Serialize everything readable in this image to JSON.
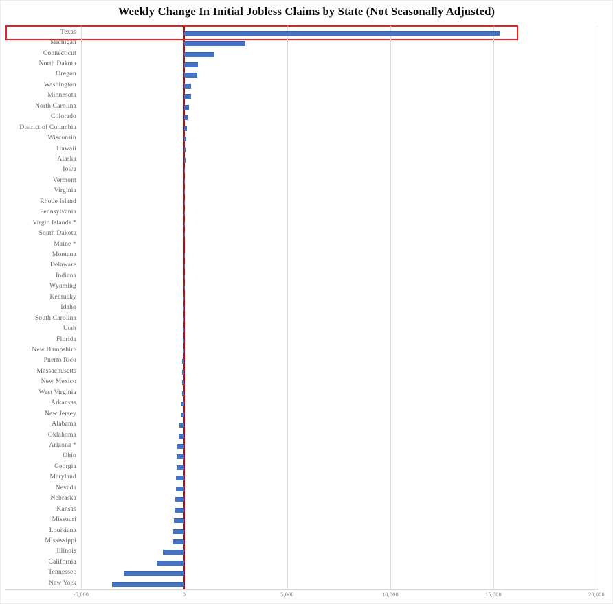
{
  "title": "Weekly Change In Initial Jobless Claims by State (Not Seasonally Adjusted)",
  "colors": {
    "bar": "#4472C4",
    "bar_edge": "#3a62ad",
    "zero_line": "#d40000",
    "highlight_box": "#e02424",
    "gridline": "#dcdcdc",
    "state_label_text": "#5f5f5f",
    "tick_label_text": "#7b7b7b",
    "title_text": "#0d0d0d"
  },
  "chart_data": {
    "type": "bar",
    "orientation": "horizontal",
    "title": "Weekly Change In Initial Jobless Claims by State (Not Seasonally Adjusted)",
    "xlabel": "",
    "ylabel": "",
    "xlim": [
      -5000,
      20000
    ],
    "grid": "vertical-gridlines-at-ticks",
    "legend": "none",
    "zero_axis_line": true,
    "highlighted_category": "Texas",
    "x_ticks": [
      -5000,
      0,
      5000,
      10000,
      15000,
      20000
    ],
    "x_tick_labels": [
      "-5,000",
      "0",
      "5,000",
      "10,000",
      "15,000",
      "20,000"
    ],
    "categories": [
      "Texas",
      "Michigan",
      "Connecticut",
      "North Dakota",
      "Oregon",
      "Washington",
      "Minnesota",
      "North Carolina",
      "Colorado",
      "District of Columbia",
      "Wisconsin",
      "Hawaii",
      "Alaska",
      "Iowa",
      "Vermont",
      "Virginia",
      "Rhode Island",
      "Pennsylvania",
      "Virgin Islands *",
      "South Dakota",
      "Maine *",
      "Montana",
      "Delaware",
      "Indiana",
      "Wyoming",
      "Kentucky",
      "Idaho",
      "South Carolina",
      "Utah",
      "Florida",
      "New Hampshire",
      "Puerto Rico",
      "Massachusetts",
      "New Mexico",
      "West Virginia",
      "Arkansas",
      "New Jersey",
      "Alabama",
      "Oklahoma",
      "Arizona *",
      "Ohio",
      "Georgia",
      "Maryland",
      "Nevada",
      "Nebraska",
      "Kansas",
      "Missouri",
      "Louisiana",
      "Mississippi",
      "Illinois",
      "California",
      "Tennessee",
      "New York"
    ],
    "values": [
      15300,
      2950,
      1450,
      680,
      620,
      340,
      330,
      220,
      170,
      120,
      100,
      60,
      50,
      45,
      25,
      15,
      10,
      10,
      5,
      5,
      0,
      -5,
      -10,
      -10,
      -15,
      -25,
      -35,
      -50,
      -60,
      -70,
      -80,
      -85,
      -90,
      -95,
      -110,
      -120,
      -150,
      -250,
      -280,
      -350,
      -370,
      -380,
      -400,
      -410,
      -430,
      -470,
      -490,
      -520,
      -550,
      -1050,
      -1330,
      -2950,
      -3500
    ]
  }
}
